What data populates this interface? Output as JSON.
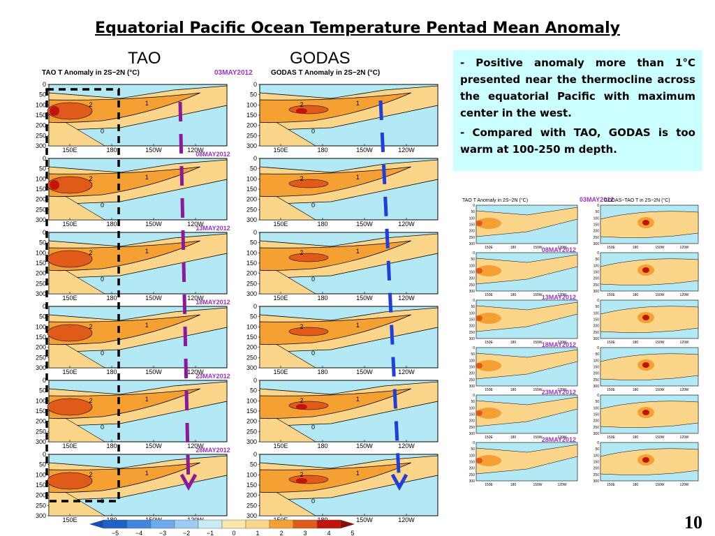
{
  "page": {
    "title": "Equatorial Pacific  Ocean Temperature Pentad Mean Anomaly",
    "left_header": "TAO",
    "right_header": "GODAS",
    "page_number": "10"
  },
  "textbox": {
    "bullets": [
      "Positive anomaly more than 1°C presented near the thermocline across the equatorial Pacific with maximum center in the west.",
      "Compared with TAO, GODAS is too warm at 100-250 m depth."
    ]
  },
  "panel_titles": {
    "tao": "TAO T Anomaly in 2S−2N (°C)",
    "godas": "GODAS T Anomaly in 2S−2N (°C)",
    "small_tao": "TAO T Anomaly in 2S~2N (°C)",
    "small_diff": "GODAS−TAO T in 2S~2N (°C)"
  },
  "dates": [
    "03MAY2012",
    "08MAY2012",
    "13MAY2012",
    "18MAY2012",
    "23MAY2012",
    "28MAY2012"
  ],
  "colors": {
    "background_neg": "#b3e8f5",
    "background_pos": "#fbd68a",
    "mid_pos": "#f5a033",
    "high_pos": "#e05a1a",
    "max_pos": "#c0140c",
    "tao_arrow": "#8b1a9a",
    "godas_arrow": "#1f3fdb",
    "date_color": "#9933cc"
  },
  "chart_data": [
    {
      "type": "heatmap",
      "name": "TAO",
      "title": "TAO T Anomaly in 2S−2N (°C)",
      "xlabel": "",
      "ylabel": "",
      "x_ticks": [
        "150E",
        "180",
        "150W",
        "120W"
      ],
      "y_ticks": [
        0,
        50,
        100,
        150,
        200,
        250,
        300
      ],
      "ylim": [
        300,
        0
      ],
      "contour_labels": [
        "1",
        "2",
        "0"
      ],
      "panels": [
        "03MAY2012",
        "08MAY2012",
        "13MAY2012",
        "18MAY2012",
        "23MAY2012",
        "28MAY2012"
      ]
    },
    {
      "type": "heatmap",
      "name": "GODAS",
      "title": "GODAS T Anomaly in 2S−2N (°C)",
      "xlabel": "",
      "ylabel": "",
      "x_ticks": [
        "150E",
        "180",
        "150W",
        "120W"
      ],
      "y_ticks": [
        0,
        50,
        100,
        150,
        200,
        250,
        300
      ],
      "ylim": [
        300,
        0
      ],
      "contour_labels": [
        "1",
        "2",
        "0"
      ],
      "panels": [
        "03MAY2012",
        "08MAY2012",
        "13MAY2012",
        "18MAY2012",
        "23MAY2012",
        "28MAY2012"
      ]
    },
    {
      "type": "heatmap",
      "name": "colorbar",
      "values": [
        -5,
        -4,
        -3,
        -2,
        -1,
        0,
        1,
        2,
        3,
        4,
        5
      ]
    }
  ]
}
